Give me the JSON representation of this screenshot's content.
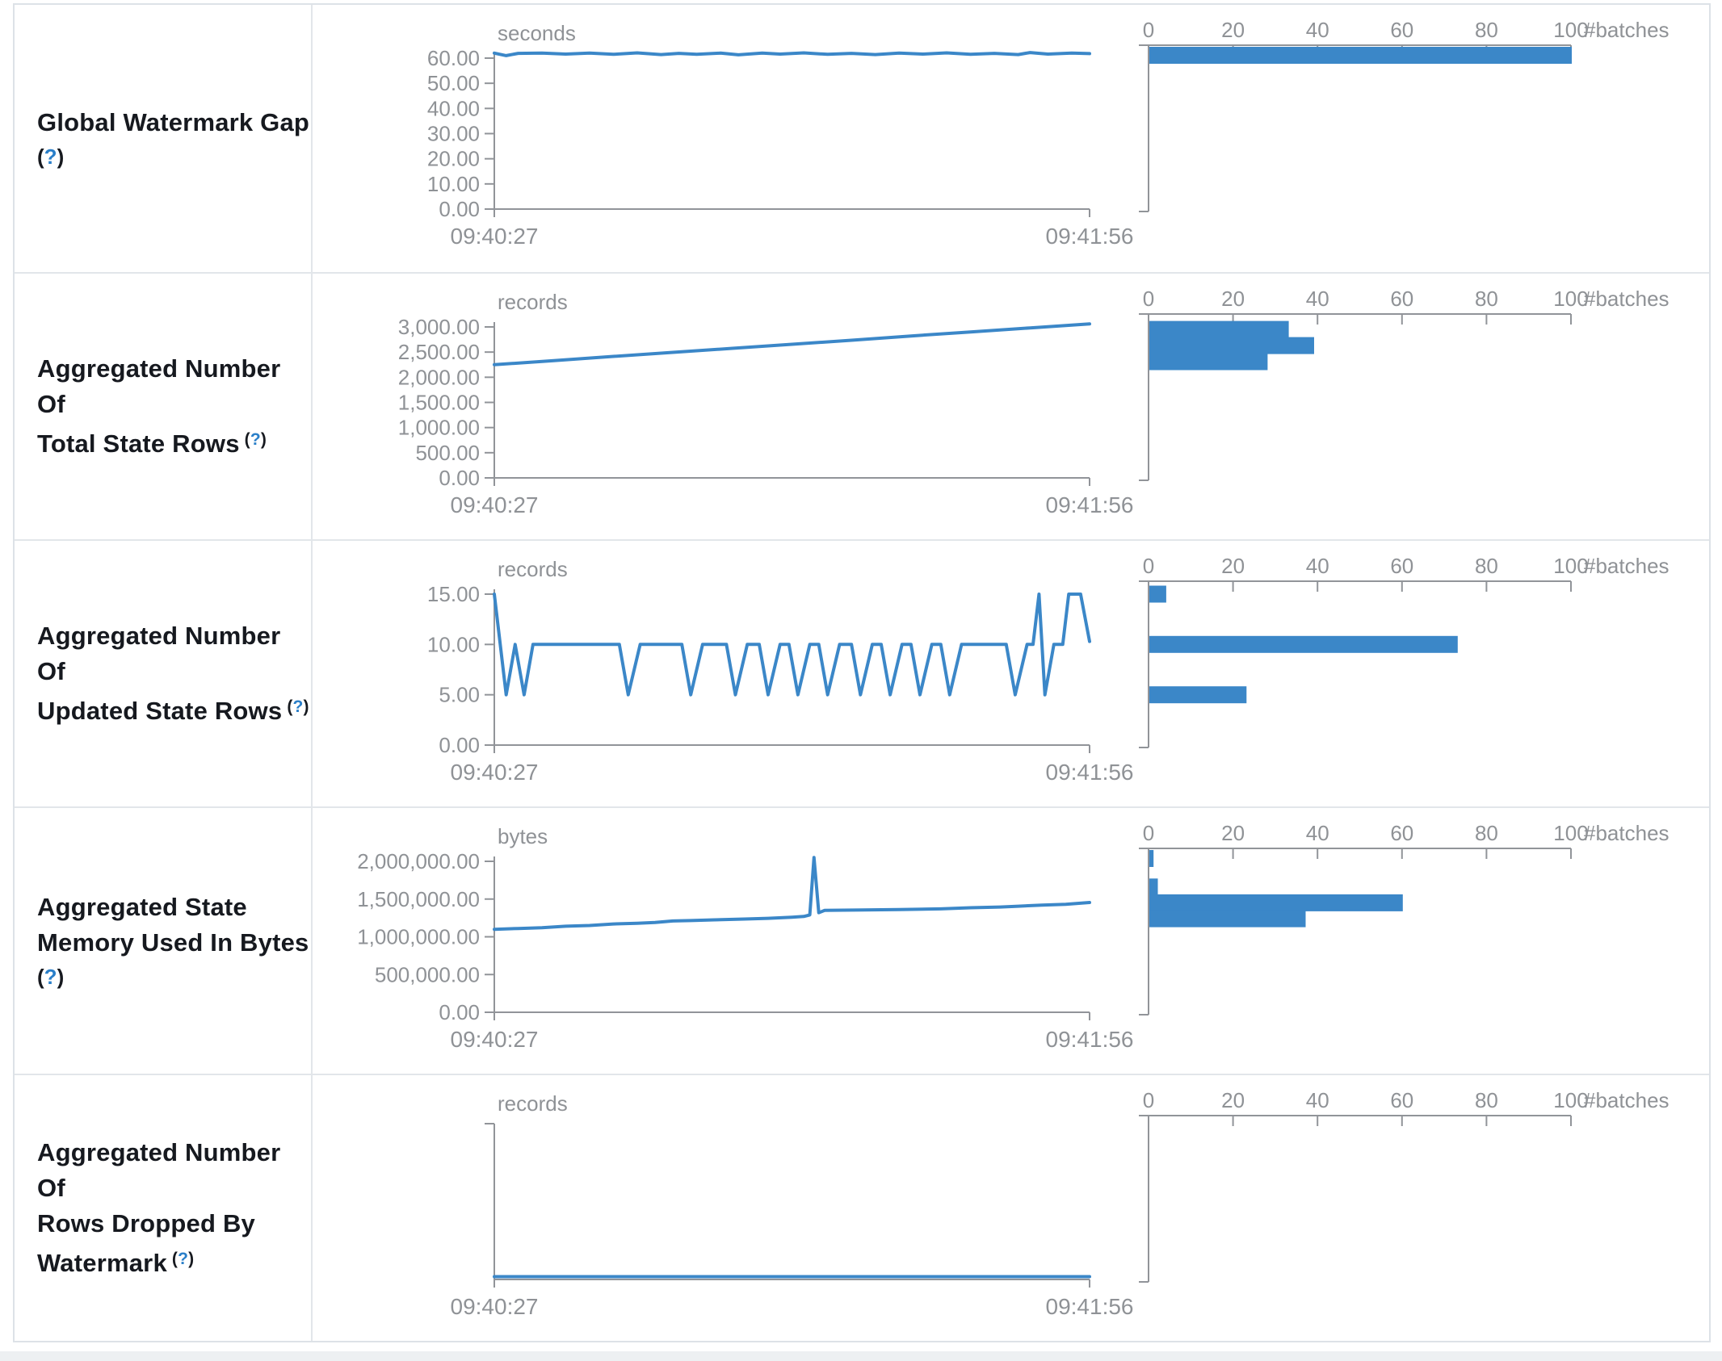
{
  "chart_data": {
    "type": "line+bar",
    "description": "Spark structured streaming statistics: timelines (left) and batch histograms (right)",
    "x_axis": {
      "start": "09:40:27",
      "end": "09:41:56"
    },
    "hist_axis": {
      "ticks": [
        0,
        20,
        40,
        60,
        80,
        100
      ],
      "label": "#batches",
      "max": 100
    },
    "help": {
      "open": "(",
      "q": "?",
      "close": ")"
    },
    "colors": {
      "series_blue": "#3b87c8",
      "axis_gray": "#919499",
      "tick_text": "#8f9296",
      "title_text": "#16191f",
      "help_blue": "#2a7fc9",
      "border": "#e2e6ea"
    },
    "rows": [
      {
        "id": "global-watermark-gap",
        "title_lines": [
          "Global Watermark Gap"
        ],
        "help_placement": "own-line",
        "unit": "seconds",
        "y_ticks": [
          60,
          50,
          40,
          30,
          20,
          10,
          0
        ],
        "y_max": 60,
        "timeline": [
          [
            0,
            62
          ],
          [
            0.02,
            61
          ],
          [
            0.04,
            61.9
          ],
          [
            0.08,
            62
          ],
          [
            0.12,
            61.6
          ],
          [
            0.16,
            62
          ],
          [
            0.2,
            61.5
          ],
          [
            0.24,
            62.1
          ],
          [
            0.28,
            61.4
          ],
          [
            0.31,
            61.9
          ],
          [
            0.34,
            61.5
          ],
          [
            0.38,
            62
          ],
          [
            0.41,
            61.3
          ],
          [
            0.45,
            62
          ],
          [
            0.48,
            61.6
          ],
          [
            0.52,
            62.1
          ],
          [
            0.56,
            61.5
          ],
          [
            0.6,
            61.9
          ],
          [
            0.64,
            61.4
          ],
          [
            0.68,
            62
          ],
          [
            0.72,
            61.6
          ],
          [
            0.76,
            62.1
          ],
          [
            0.8,
            61.5
          ],
          [
            0.84,
            61.9
          ],
          [
            0.88,
            61.4
          ],
          [
            0.9,
            62.2
          ],
          [
            0.93,
            61.6
          ],
          [
            0.97,
            62
          ],
          [
            1,
            61.8
          ]
        ],
        "histogram": [
          {
            "value": 61.5,
            "count": 100
          }
        ]
      },
      {
        "id": "aggregated-total-state-rows",
        "title_lines": [
          "Aggregated Number Of",
          "Total State Rows"
        ],
        "help_placement": "inline-sup",
        "unit": "records",
        "y_ticks": [
          3000,
          2500,
          2000,
          1500,
          1000,
          500,
          0
        ],
        "y_max": 3000,
        "timeline": [
          [
            0,
            2250
          ],
          [
            0.1,
            2330
          ],
          [
            0.2,
            2415
          ],
          [
            0.3,
            2495
          ],
          [
            0.4,
            2575
          ],
          [
            0.5,
            2655
          ],
          [
            0.6,
            2735
          ],
          [
            0.7,
            2820
          ],
          [
            0.8,
            2900
          ],
          [
            0.9,
            2980
          ],
          [
            1,
            3060
          ]
        ],
        "histogram": [
          {
            "value": 2950,
            "count": 33
          },
          {
            "value": 2630,
            "count": 39
          },
          {
            "value": 2310,
            "count": 28
          }
        ]
      },
      {
        "id": "aggregated-updated-state-rows",
        "title_lines": [
          "Aggregated Number Of",
          "Updated State Rows"
        ],
        "help_placement": "inline-sup",
        "unit": "records",
        "y_ticks": [
          15,
          10,
          5,
          0
        ],
        "y_max": 15,
        "timeline": [
          [
            0,
            15
          ],
          [
            0.02,
            5
          ],
          [
            0.035,
            10
          ],
          [
            0.05,
            5
          ],
          [
            0.065,
            10
          ],
          [
            0.21,
            10
          ],
          [
            0.225,
            5
          ],
          [
            0.245,
            10
          ],
          [
            0.315,
            10
          ],
          [
            0.33,
            5
          ],
          [
            0.35,
            10
          ],
          [
            0.39,
            10
          ],
          [
            0.405,
            5
          ],
          [
            0.425,
            10
          ],
          [
            0.445,
            10
          ],
          [
            0.46,
            5
          ],
          [
            0.48,
            10
          ],
          [
            0.495,
            10
          ],
          [
            0.51,
            5
          ],
          [
            0.53,
            10
          ],
          [
            0.545,
            10
          ],
          [
            0.56,
            5
          ],
          [
            0.58,
            10
          ],
          [
            0.6,
            10
          ],
          [
            0.615,
            5
          ],
          [
            0.635,
            10
          ],
          [
            0.65,
            10
          ],
          [
            0.665,
            5
          ],
          [
            0.685,
            10
          ],
          [
            0.7,
            10
          ],
          [
            0.715,
            5
          ],
          [
            0.735,
            10
          ],
          [
            0.75,
            10
          ],
          [
            0.765,
            5
          ],
          [
            0.785,
            10
          ],
          [
            0.86,
            10
          ],
          [
            0.875,
            5
          ],
          [
            0.895,
            10
          ],
          [
            0.905,
            10
          ],
          [
            0.915,
            15
          ],
          [
            0.925,
            5
          ],
          [
            0.94,
            10
          ],
          [
            0.955,
            10
          ],
          [
            0.965,
            15
          ],
          [
            0.985,
            15
          ],
          [
            1,
            10.3
          ]
        ],
        "histogram": [
          {
            "value": 15,
            "count": 4
          },
          {
            "value": 10,
            "count": 73
          },
          {
            "value": 5,
            "count": 23
          }
        ]
      },
      {
        "id": "aggregated-state-memory-used",
        "title_lines": [
          "Aggregated State",
          "Memory Used In Bytes"
        ],
        "help_placement": "own-line",
        "unit": "bytes",
        "y_ticks": [
          2000000,
          1500000,
          1000000,
          500000,
          0
        ],
        "y_max": 2000000,
        "timeline": [
          [
            0,
            1100000
          ],
          [
            0.04,
            1110000
          ],
          [
            0.08,
            1120000
          ],
          [
            0.12,
            1140000
          ],
          [
            0.16,
            1150000
          ],
          [
            0.2,
            1170000
          ],
          [
            0.24,
            1180000
          ],
          [
            0.27,
            1190000
          ],
          [
            0.3,
            1210000
          ],
          [
            0.33,
            1215000
          ],
          [
            0.37,
            1225000
          ],
          [
            0.42,
            1235000
          ],
          [
            0.46,
            1245000
          ],
          [
            0.5,
            1260000
          ],
          [
            0.52,
            1270000
          ],
          [
            0.53,
            1290000
          ],
          [
            0.537,
            2050000
          ],
          [
            0.545,
            1320000
          ],
          [
            0.555,
            1350000
          ],
          [
            0.62,
            1355000
          ],
          [
            0.68,
            1360000
          ],
          [
            0.75,
            1370000
          ],
          [
            0.8,
            1385000
          ],
          [
            0.85,
            1395000
          ],
          [
            0.88,
            1405000
          ],
          [
            0.92,
            1420000
          ],
          [
            0.96,
            1430000
          ],
          [
            1,
            1455000
          ]
        ],
        "histogram": [
          {
            "value": 2050000,
            "count": 1
          },
          {
            "value": 1660000,
            "count": 2
          },
          {
            "value": 1450000,
            "count": 60
          },
          {
            "value": 1240000,
            "count": 37
          }
        ]
      },
      {
        "id": "aggregated-rows-dropped-by-watermark",
        "title_lines": [
          "Aggregated Number Of",
          "Rows Dropped By",
          "Watermark"
        ],
        "help_placement": "inline-sup",
        "unit": "records",
        "y_ticks": [],
        "y_max": 1,
        "timeline": [
          [
            0,
            0
          ],
          [
            1,
            0
          ]
        ],
        "histogram": []
      }
    ]
  }
}
